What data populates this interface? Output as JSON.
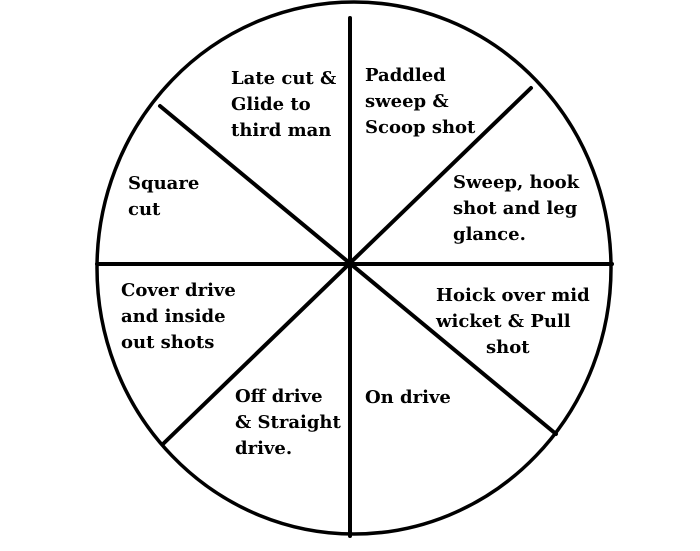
{
  "diagram": {
    "sectors": [
      {
        "id": "late-cut",
        "lines": [
          "Late cut &",
          "Glide to",
          "third man"
        ]
      },
      {
        "id": "paddled-sweep",
        "lines": [
          "Paddled",
          "sweep &",
          "Scoop shot"
        ]
      },
      {
        "id": "sweep-hook",
        "lines": [
          "Sweep, hook",
          "shot and leg",
          "glance."
        ]
      },
      {
        "id": "hoick",
        "lines": [
          "Hoick over mid",
          "wicket & Pull",
          "shot"
        ]
      },
      {
        "id": "on-drive",
        "lines": [
          "On drive"
        ]
      },
      {
        "id": "off-drive",
        "lines": [
          "Off drive",
          "& Straight",
          "drive."
        ]
      },
      {
        "id": "cover-drive",
        "lines": [
          "Cover drive",
          "and inside",
          "out shots"
        ]
      },
      {
        "id": "square-cut",
        "lines": [
          "Square",
          "cut"
        ]
      }
    ],
    "colors": {
      "stroke": "#000000",
      "background": "#ffffff",
      "text": "#000000"
    }
  }
}
